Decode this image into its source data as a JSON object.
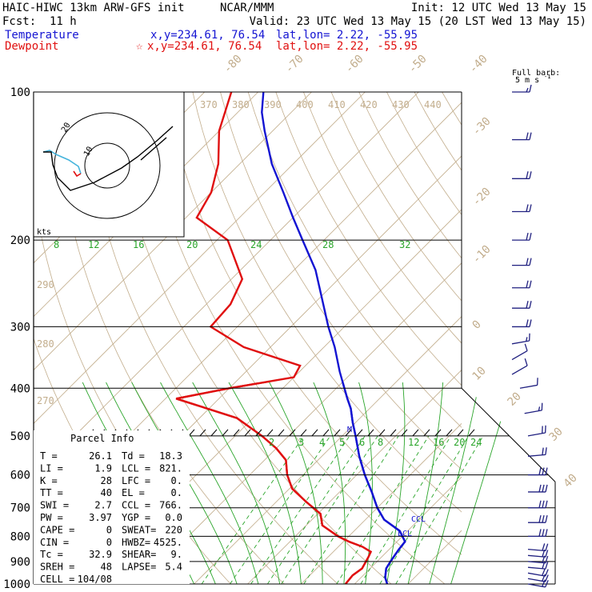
{
  "header": {
    "model": "HAIC-HIWC 13km ARW-GFS init",
    "org": "NCAR/MMM",
    "init": "Init: 12 UTC Wed 13 May 15",
    "fcst_label": "Fcst:",
    "fcst_value": "11 h",
    "valid": "Valid: 23 UTC Wed 13 May 15 (20 LST Wed 13 May 15)",
    "temp_label": "Temperature",
    "temp_xy": "x,y=234.61, 76.54",
    "temp_latlon": "lat,lon=  2.22, -55.95",
    "dew_label": "Dewpoint",
    "dew_marker": "☆",
    "dew_xy": "x,y=234.61, 76.54",
    "dew_latlon": "lat,lon=  2.22, -55.95",
    "barb_title_1": "Full barb:",
    "barb_title_2": "5 m s",
    "barb_title_sup": "-1"
  },
  "colors": {
    "temperature": "#1414d2",
    "dewpoint": "#e01010",
    "isotherm": "#c2ad8c",
    "mixing_ratio": "#2aa52a",
    "wind": "#202080",
    "hodo_low": "#46b4dc"
  },
  "parcel": {
    "title": "Parcel Info",
    "rows": [
      [
        "T  =",
        "26.1",
        "Td =",
        "18.3"
      ],
      [
        "LI =",
        "1.9",
        "LCL =",
        "821."
      ],
      [
        "K  =",
        "28",
        "LFC =",
        "0."
      ],
      [
        "TT =",
        "40",
        "EL =",
        "0."
      ],
      [
        "SWI =",
        "2.7",
        "CCL =",
        "766."
      ],
      [
        "PW =",
        "3.97",
        "YGP =",
        "0.0"
      ],
      [
        "CAPE =",
        "0",
        "SWEAT=",
        "220"
      ],
      [
        "CIN =",
        "0",
        "HWBZ=",
        "4525."
      ],
      [
        "Tc =",
        "32.9",
        "SHEAR=",
        "9."
      ],
      [
        "SREH =",
        "48",
        "LAPSE=",
        "5.4"
      ],
      [
        "CELL =",
        "104/08",
        "",
        ""
      ]
    ]
  },
  "hodograph": {
    "units": "kts",
    "ring_labels": [
      "10",
      "20"
    ]
  },
  "markers": {
    "ccl": "CCL",
    "lcl": "LCL",
    "m": "M"
  },
  "chart_data": {
    "type": "line",
    "title": "",
    "xlabel": "",
    "ylabel": "",
    "y_axis": "pressure (hPa), log scale",
    "pressure_levels": [
      100,
      200,
      300,
      400,
      500,
      600,
      700,
      800,
      900,
      1000
    ],
    "pressure_tick_labels": [
      "100",
      "200",
      "300",
      "400",
      "500",
      "600",
      "700",
      "800",
      "900",
      "1000"
    ],
    "ylim": [
      1000,
      100
    ],
    "xlim_at_1000hPa_degC": [
      -40,
      40
    ],
    "skew": "45 deg",
    "isotherm_labels": [
      "-80",
      "-70",
      "-60",
      "-50",
      "-40",
      "-30",
      "-20",
      "-10",
      "0",
      "10",
      "20",
      "30",
      "40"
    ],
    "theta_labels": [
      "370",
      "380",
      "390",
      "400",
      "410",
      "420",
      "430",
      "440"
    ],
    "theta_low_labels": [
      "290",
      "280",
      "270"
    ],
    "mixing_ratio_labels_top": [
      "8",
      "12",
      "16",
      "20",
      "24",
      "28",
      "32"
    ],
    "mixing_ratio_labels_mid": [
      "2",
      "3",
      "4",
      "5",
      "6",
      "8",
      "12",
      "16",
      "20",
      "24"
    ],
    "series": [
      {
        "name": "Temperature",
        "points_p_T": [
          [
            1000,
            26.1
          ],
          [
            970,
            24.5
          ],
          [
            930,
            23.0
          ],
          [
            900,
            22.5
          ],
          [
            850,
            21.8
          ],
          [
            820,
            21.5
          ],
          [
            780,
            18.5
          ],
          [
            740,
            13.5
          ],
          [
            700,
            10.0
          ],
          [
            650,
            6.0
          ],
          [
            600,
            1.5
          ],
          [
            550,
            -3.0
          ],
          [
            500,
            -7.5
          ],
          [
            470,
            -10.5
          ],
          [
            440,
            -13.5
          ],
          [
            420,
            -16.0
          ],
          [
            400,
            -18.5
          ],
          [
            370,
            -22.5
          ],
          [
            330,
            -28.0
          ],
          [
            300,
            -33.0
          ],
          [
            260,
            -40.0
          ],
          [
            230,
            -46.0
          ],
          [
            200,
            -54.0
          ],
          [
            180,
            -60.0
          ],
          [
            160,
            -66.5
          ],
          [
            140,
            -74.0
          ],
          [
            120,
            -81.5
          ],
          [
            110,
            -85.5
          ],
          [
            100,
            -89.0
          ]
        ]
      },
      {
        "name": "Dewpoint",
        "points_p_T": [
          [
            1000,
            18.3
          ],
          [
            960,
            18.0
          ],
          [
            930,
            18.5
          ],
          [
            880,
            17.5
          ],
          [
            860,
            17.0
          ],
          [
            840,
            14.5
          ],
          [
            820,
            11.0
          ],
          [
            800,
            8.0
          ],
          [
            760,
            3.0
          ],
          [
            720,
            0.5
          ],
          [
            680,
            -4.5
          ],
          [
            640,
            -9.5
          ],
          [
            600,
            -13.0
          ],
          [
            560,
            -16.0
          ],
          [
            530,
            -20.0
          ],
          [
            500,
            -25.0
          ],
          [
            460,
            -33.0
          ],
          [
            420,
            -48.0
          ],
          [
            400,
            -40.0
          ],
          [
            380,
            -30.0
          ],
          [
            360,
            -31.0
          ],
          [
            330,
            -45.0
          ],
          [
            300,
            -55.0
          ],
          [
            270,
            -55.5
          ],
          [
            240,
            -58.0
          ],
          [
            200,
            -68.0
          ],
          [
            180,
            -78.0
          ],
          [
            160,
            -80.0
          ],
          [
            140,
            -84.0
          ],
          [
            120,
            -90.0
          ],
          [
            100,
            -95.0
          ]
        ]
      }
    ],
    "wind_barbs_p_dir_kt": [
      [
        1000,
        100,
        10
      ],
      [
        975,
        100,
        10
      ],
      [
        950,
        100,
        10
      ],
      [
        925,
        95,
        10
      ],
      [
        900,
        95,
        12
      ],
      [
        875,
        95,
        12
      ],
      [
        850,
        95,
        12
      ],
      [
        800,
        90,
        15
      ],
      [
        750,
        90,
        15
      ],
      [
        700,
        90,
        15
      ],
      [
        650,
        90,
        15
      ],
      [
        600,
        90,
        15
      ],
      [
        550,
        85,
        12
      ],
      [
        500,
        80,
        10
      ],
      [
        450,
        80,
        8
      ],
      [
        400,
        80,
        5
      ],
      [
        375,
        60,
        5
      ],
      [
        350,
        60,
        5
      ],
      [
        325,
        80,
        8
      ],
      [
        300,
        90,
        10
      ],
      [
        275,
        90,
        12
      ],
      [
        250,
        90,
        12
      ],
      [
        225,
        90,
        12
      ],
      [
        200,
        90,
        12
      ],
      [
        175,
        90,
        12
      ],
      [
        150,
        90,
        12
      ],
      [
        125,
        90,
        10
      ],
      [
        100,
        90,
        8
      ]
    ]
  }
}
